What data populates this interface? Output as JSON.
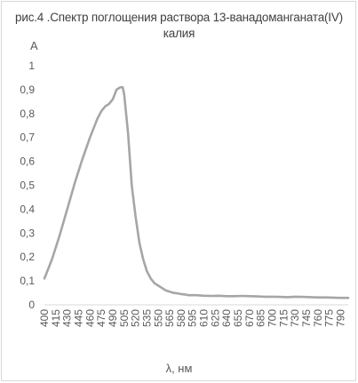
{
  "chart_data": {
    "type": "line",
    "title_line1": "рис.4 .Спектр поглощения раствора 13-ванадоманганата(IV)",
    "title_line2": "калия",
    "ylabel": "A",
    "xlabel": "λ, нм",
    "ylim": [
      0,
      1
    ],
    "yticks": [
      "0",
      "0,1",
      "0,2",
      "0,3",
      "0,4",
      "0,5",
      "0,6",
      "0,7",
      "0,8",
      "0,9",
      "1"
    ],
    "xticks": [
      "400",
      "415",
      "430",
      "445",
      "460",
      "475",
      "490",
      "505",
      "520",
      "535",
      "550",
      "565",
      "580",
      "595",
      "610",
      "625",
      "640",
      "655",
      "670",
      "685",
      "700",
      "715",
      "730",
      "745",
      "760",
      "775",
      "790"
    ],
    "grid": false,
    "line_color": "#a6a6a6",
    "series": [
      {
        "x": [
          400,
          410,
          420,
          430,
          440,
          450,
          460,
          470,
          475,
          480,
          485,
          490,
          495,
          500,
          503,
          505,
          510,
          515,
          520,
          525,
          530,
          535,
          540,
          545,
          550,
          555,
          560,
          565,
          570,
          575,
          580,
          585,
          590,
          595,
          600,
          610,
          620,
          630,
          640,
          650,
          660,
          670,
          680,
          690,
          700,
          710,
          720,
          730,
          740,
          750,
          760,
          770,
          780,
          790,
          800
        ],
        "values": [
          0.11,
          0.19,
          0.29,
          0.4,
          0.51,
          0.61,
          0.7,
          0.78,
          0.81,
          0.83,
          0.84,
          0.86,
          0.9,
          0.91,
          0.91,
          0.88,
          0.72,
          0.5,
          0.37,
          0.26,
          0.19,
          0.14,
          0.11,
          0.09,
          0.08,
          0.07,
          0.06,
          0.055,
          0.05,
          0.048,
          0.045,
          0.043,
          0.04,
          0.04,
          0.04,
          0.038,
          0.037,
          0.038,
          0.036,
          0.036,
          0.037,
          0.036,
          0.035,
          0.034,
          0.034,
          0.033,
          0.032,
          0.034,
          0.033,
          0.032,
          0.031,
          0.031,
          0.03,
          0.029,
          0.029
        ]
      }
    ]
  }
}
